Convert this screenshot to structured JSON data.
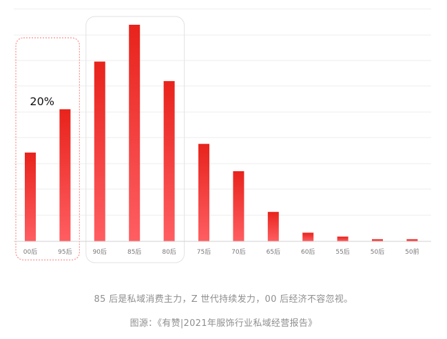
{
  "chart_data": {
    "type": "bar",
    "categories": [
      "00后",
      "95后",
      "90后",
      "85后",
      "80后",
      "75后",
      "70后",
      "65后",
      "60后",
      "55后",
      "50后",
      "50前"
    ],
    "values": [
      20.5,
      30.5,
      41.5,
      50,
      37,
      22.5,
      16.2,
      6.8,
      2,
      1.1,
      0.5,
      0.5
    ],
    "ylim": [
      0,
      50
    ],
    "grid": true,
    "annotation": {
      "text": "20%",
      "group": [
        "00后",
        "95后"
      ]
    },
    "highlight_groups": [
      {
        "categories": [
          "00后",
          "95后"
        ],
        "style": "dotted-red-box"
      },
      {
        "categories": [
          "90后",
          "85后",
          "80后"
        ],
        "style": "gray-rounded-box"
      }
    ],
    "bar_color_top": "#e8231c",
    "bar_color_bottom": "#ff5e62",
    "axis_color": "#d0d0d0",
    "grid_color": "#ececec"
  },
  "caption": "85 后是私域消费主力，Z 世代持续发力，00 后经济不容忽视。",
  "source": "图源：《有赞|2021年服饰行业私域经营报告》"
}
